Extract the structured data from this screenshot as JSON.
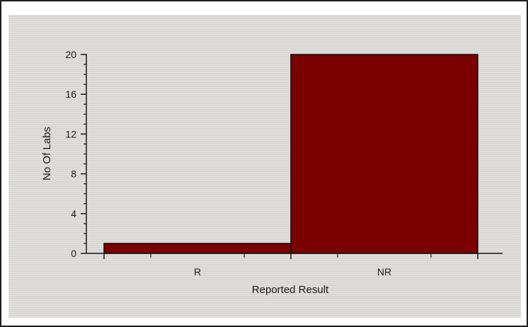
{
  "chart_data": {
    "type": "bar",
    "categories": [
      "R",
      "NR"
    ],
    "values": [
      1,
      20
    ],
    "xlabel": "Reported Result",
    "ylabel": "No Of Labs",
    "ylim": [
      0,
      20
    ],
    "yticks": [
      0,
      4,
      8,
      12,
      16,
      20
    ],
    "grid": false,
    "legend": "none",
    "bar_color": "#7b0000",
    "panel_color": "#dcdbd8"
  }
}
